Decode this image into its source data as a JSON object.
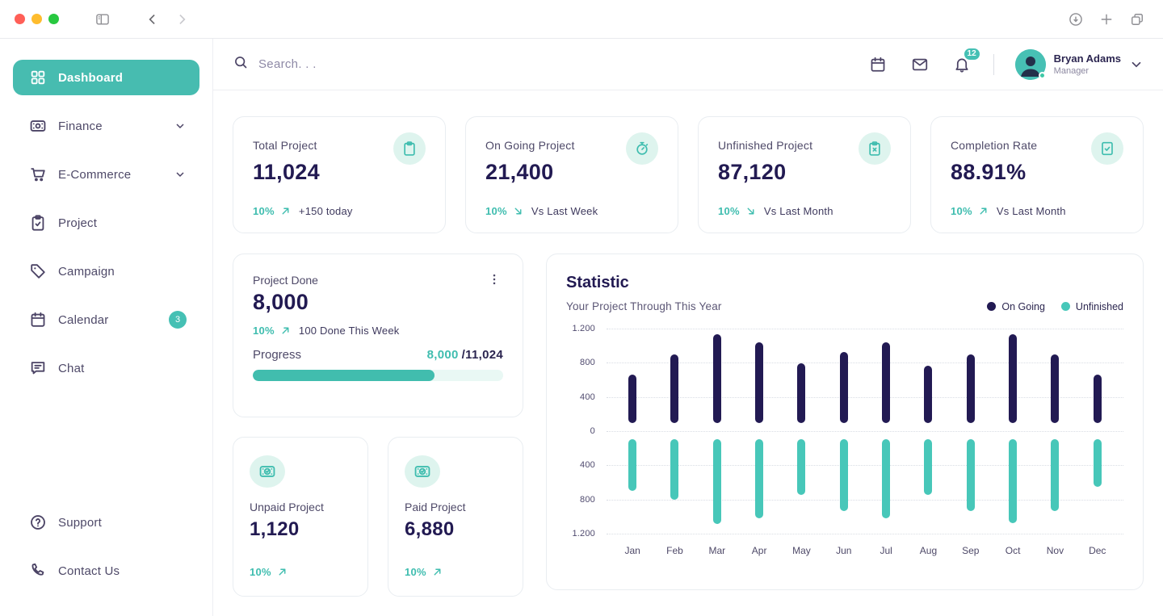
{
  "colors": {
    "accent": "#45bfb2",
    "mint_bg": "#def4ee",
    "navy": "#221a52",
    "on_going_bar": "#221a53",
    "unfinished_bar": "#47c7b9"
  },
  "sidebar": {
    "items": [
      {
        "label": "Dashboard",
        "icon": "grid",
        "active": true
      },
      {
        "label": "Finance",
        "icon": "money",
        "chevron": true
      },
      {
        "label": "E-Commerce",
        "icon": "cart",
        "chevron": true
      },
      {
        "label": "Project",
        "icon": "clipboard-check"
      },
      {
        "label": "Campaign",
        "icon": "tag"
      },
      {
        "label": "Calendar",
        "icon": "calendar",
        "badge": "3"
      },
      {
        "label": "Chat",
        "icon": "chat"
      }
    ],
    "footer_items": [
      {
        "label": "Support",
        "icon": "help-circle"
      },
      {
        "label": "Contact Us",
        "icon": "phone"
      }
    ]
  },
  "header": {
    "search_placeholder": "Search. . .",
    "notification_count": "12",
    "user": {
      "name": "Bryan Adams",
      "role": "Manager"
    }
  },
  "stat_cards": [
    {
      "title": "Total Project",
      "value": "11,024",
      "delta": "10%",
      "trend": "up",
      "note": "+150 today",
      "icon": "clipboard"
    },
    {
      "title": "On Going Project",
      "value": "21,400",
      "delta": "10%",
      "trend": "down",
      "note": "Vs Last Week",
      "icon": "stopwatch"
    },
    {
      "title": "Unfinished Project",
      "value": "87,120",
      "delta": "10%",
      "trend": "down",
      "note": "Vs Last Month",
      "icon": "clipboard-x"
    },
    {
      "title": "Completion Rate",
      "value": "88.91%",
      "delta": "10%",
      "trend": "up",
      "note": "Vs Last Month",
      "icon": "file-check"
    }
  ],
  "project_done": {
    "title": "Project Done",
    "value": "8,000",
    "delta": "10%",
    "trend": "up",
    "note": "100 Done This Week",
    "progress_label": "Progress",
    "progress_current": "8,000",
    "progress_total": "/11,024",
    "progress_pct": 72.6
  },
  "mini_cards": [
    {
      "title": "Unpaid Project",
      "value": "1,120",
      "delta": "10%",
      "trend": "up",
      "icon": "banknote-check"
    },
    {
      "title": "Paid Project",
      "value": "6,880",
      "delta": "10%",
      "trend": "up",
      "icon": "banknote-check"
    }
  ],
  "chart_data": {
    "type": "bar",
    "variant": "diverging-rounded-columns",
    "title": "Statistic",
    "subtitle": "Your Project Through This Year",
    "categories": [
      "Jan",
      "Feb",
      "Mar",
      "Apr",
      "May",
      "Jun",
      "Jul",
      "Aug",
      "Sep",
      "Oct",
      "Nov",
      "Dec"
    ],
    "series": [
      {
        "name": "On Going",
        "color": "#221a53",
        "direction": "up",
        "values": [
          660,
          900,
          1130,
          1040,
          790,
          930,
          1040,
          770,
          900,
          1130,
          900,
          660
        ]
      },
      {
        "name": "Unfinished",
        "color": "#47c7b9",
        "direction": "down",
        "values": [
          700,
          800,
          1090,
          1020,
          750,
          940,
          1020,
          750,
          940,
          1080,
          940,
          650
        ]
      }
    ],
    "y_ticks": [
      "1.200",
      "800",
      "400",
      "0",
      "400",
      "800",
      "1.200"
    ],
    "ylim": [
      -1200,
      1200
    ],
    "bar_gap_from_zero_units": 90,
    "grid": "horizontal-dotted",
    "legend_position": "top-right"
  }
}
